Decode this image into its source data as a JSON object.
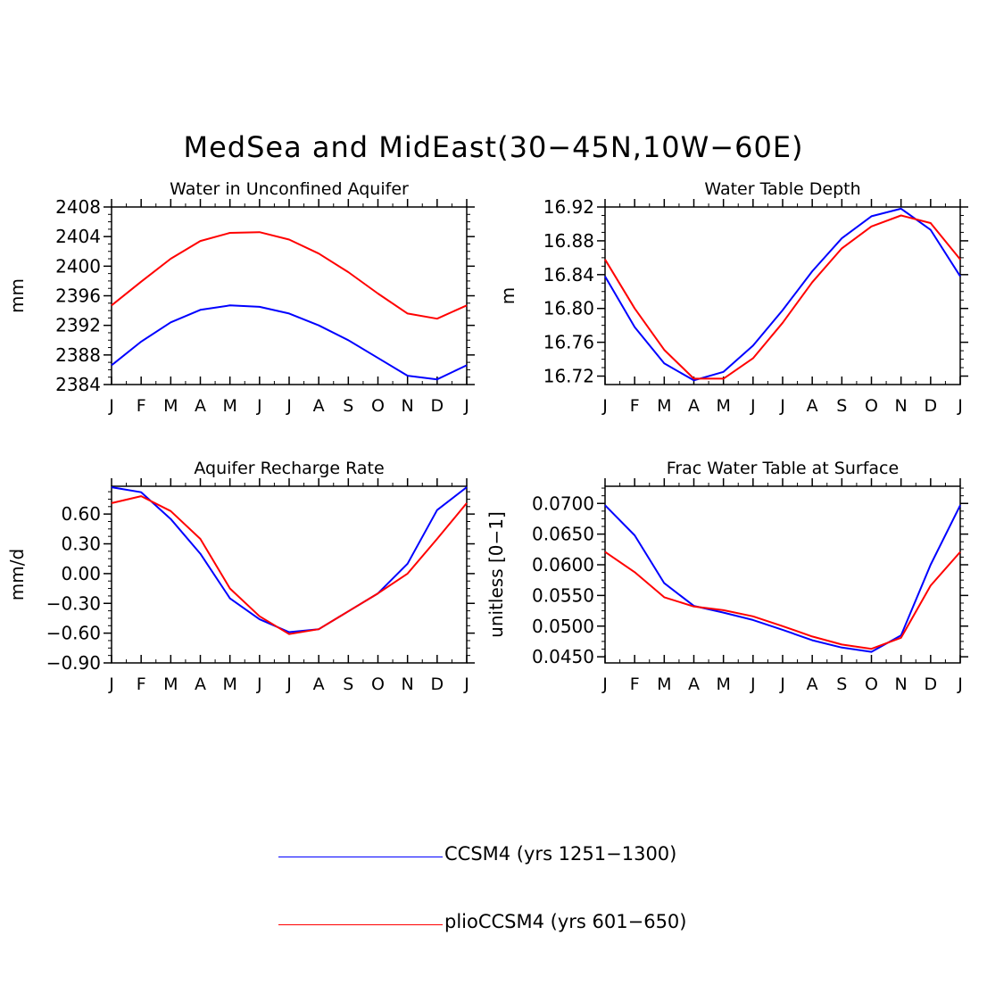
{
  "figure": {
    "title": "MedSea and MidEast(30−45N,10W−60E)"
  },
  "colors": {
    "ccsm4": "#0000ff",
    "plio": "#ff0000",
    "axis": "#000000"
  },
  "legend": {
    "items": [
      {
        "label": "CCSM4 (yrs 1251−1300)",
        "color": "#0000ff"
      },
      {
        "label": "plioCCSM4 (yrs 601−650)",
        "color": "#ff0000"
      }
    ]
  },
  "chart_data": [
    {
      "type": "line",
      "title": "Water in Unconfined Aquifer",
      "xlabel": "",
      "ylabel": "mm",
      "categories": [
        "J",
        "F",
        "M",
        "A",
        "M",
        "J",
        "J",
        "A",
        "S",
        "O",
        "N",
        "D",
        "J"
      ],
      "ylim": [
        2384,
        2408
      ],
      "yticks": [
        2384,
        2388,
        2392,
        2396,
        2400,
        2404,
        2408
      ],
      "ytick_labels": [
        "2384",
        "2388",
        "2392",
        "2396",
        "2400",
        "2404",
        "2408"
      ],
      "series": [
        {
          "name": "CCSM4 (yrs 1251−1300)",
          "color": "#0000ff",
          "values": [
            2386.6,
            2389.8,
            2392.4,
            2394.1,
            2394.7,
            2394.5,
            2393.6,
            2392.0,
            2390.0,
            2387.6,
            2385.2,
            2384.7,
            2386.6
          ]
        },
        {
          "name": "plioCCSM4 (yrs 601−650)",
          "color": "#ff0000",
          "values": [
            2394.7,
            2397.9,
            2401.0,
            2403.4,
            2404.5,
            2404.6,
            2403.6,
            2401.7,
            2399.2,
            2396.3,
            2393.6,
            2392.9,
            2394.7
          ]
        }
      ]
    },
    {
      "type": "line",
      "title": "Water Table Depth",
      "xlabel": "",
      "ylabel": "m",
      "categories": [
        "J",
        "F",
        "M",
        "A",
        "M",
        "J",
        "J",
        "A",
        "S",
        "O",
        "N",
        "D",
        "J"
      ],
      "ylim": [
        16.71,
        16.92
      ],
      "yticks": [
        16.72,
        16.76,
        16.8,
        16.84,
        16.88,
        16.92
      ],
      "ytick_labels": [
        "16.72",
        "16.76",
        "16.80",
        "16.84",
        "16.88",
        "16.92"
      ],
      "series": [
        {
          "name": "CCSM4 (yrs 1251−1300)",
          "color": "#0000ff",
          "values": [
            16.838,
            16.778,
            16.735,
            16.715,
            16.725,
            16.756,
            16.798,
            16.844,
            16.883,
            16.909,
            16.918,
            16.893,
            16.838
          ]
        },
        {
          "name": "plioCCSM4 (yrs 601−650)",
          "color": "#ff0000",
          "values": [
            16.858,
            16.8,
            16.751,
            16.717,
            16.717,
            16.741,
            16.783,
            16.831,
            16.871,
            16.897,
            16.91,
            16.901,
            16.858
          ]
        }
      ]
    },
    {
      "type": "line",
      "title": "Aquifer Recharge Rate",
      "xlabel": "",
      "ylabel": "mm/d",
      "categories": [
        "J",
        "F",
        "M",
        "A",
        "M",
        "J",
        "J",
        "A",
        "S",
        "O",
        "N",
        "D",
        "J"
      ],
      "ylim": [
        -0.9,
        0.88
      ],
      "yticks": [
        -0.9,
        -0.6,
        -0.3,
        0.0,
        0.3,
        0.6
      ],
      "ytick_labels": [
        "−0.90",
        "−0.60",
        "−0.30",
        "0.00",
        "0.30",
        "0.60"
      ],
      "series": [
        {
          "name": "CCSM4 (yrs 1251−1300)",
          "color": "#0000ff",
          "values": [
            0.87,
            0.82,
            0.55,
            0.2,
            -0.25,
            -0.46,
            -0.59,
            -0.56,
            -0.38,
            -0.2,
            0.1,
            0.64,
            0.87
          ]
        },
        {
          "name": "plioCCSM4 (yrs 601−650)",
          "color": "#ff0000",
          "values": [
            0.71,
            0.78,
            0.63,
            0.35,
            -0.15,
            -0.43,
            -0.61,
            -0.56,
            -0.38,
            -0.2,
            0.0,
            0.35,
            0.71
          ]
        }
      ]
    },
    {
      "type": "line",
      "title": "Frac Water Table at Surface",
      "xlabel": "",
      "ylabel": "unitless [0−1]",
      "categories": [
        "J",
        "F",
        "M",
        "A",
        "M",
        "J",
        "J",
        "A",
        "S",
        "O",
        "N",
        "D",
        "J"
      ],
      "ylim": [
        0.044,
        0.0728
      ],
      "yticks": [
        0.045,
        0.05,
        0.055,
        0.06,
        0.065,
        0.07
      ],
      "ytick_labels": [
        "0.0450",
        "0.0500",
        "0.0550",
        "0.0600",
        "0.0650",
        "0.0700"
      ],
      "series": [
        {
          "name": "CCSM4 (yrs 1251−1300)",
          "color": "#0000ff",
          "values": [
            0.0697,
            0.0648,
            0.057,
            0.0533,
            0.0522,
            0.051,
            0.0494,
            0.0477,
            0.0465,
            0.0458,
            0.0485,
            0.06,
            0.0697
          ]
        },
        {
          "name": "plioCCSM4 (yrs 601−650)",
          "color": "#ff0000",
          "values": [
            0.0621,
            0.0588,
            0.0547,
            0.0532,
            0.0526,
            0.0516,
            0.05,
            0.0483,
            0.047,
            0.0463,
            0.0481,
            0.0566,
            0.0621
          ]
        }
      ]
    }
  ]
}
